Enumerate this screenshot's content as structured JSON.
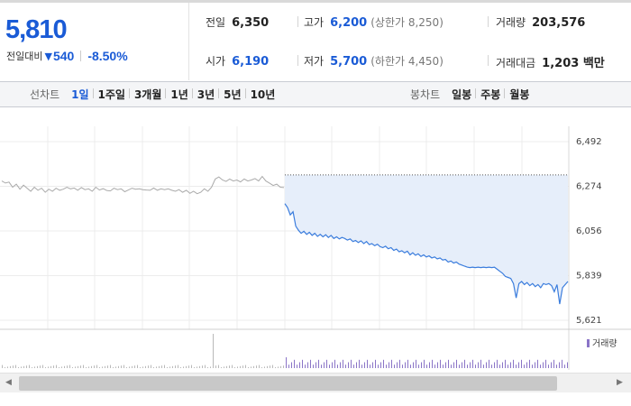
{
  "quote": {
    "current_price": "5,810",
    "change_label": "전일대비",
    "change_direction": "down",
    "change_amount": "540",
    "change_rate": "-8.50%",
    "accent_color": "#1a5bd6"
  },
  "stats": {
    "prev_close": {
      "label": "전일",
      "value": "6,350"
    },
    "high": {
      "label": "고가",
      "value": "6,200",
      "sub": "(상한가 8,250)"
    },
    "volume": {
      "label": "거래량",
      "value": "203,576"
    },
    "open": {
      "label": "시가",
      "value": "6,190"
    },
    "low": {
      "label": "저가",
      "value": "5,700",
      "sub": "(하한가 4,450)"
    },
    "trade_value": {
      "label": "거래대금",
      "value": "1,203 백만"
    }
  },
  "line_tabs": {
    "label": "선차트",
    "items": [
      "1일",
      "1주일",
      "3개월",
      "1년",
      "3년",
      "5년",
      "10년"
    ],
    "active": "1일"
  },
  "candle_tabs": {
    "label": "봉차트",
    "items": [
      "일봉",
      "주봉",
      "월봉"
    ]
  },
  "chart_data": {
    "type": "line",
    "y_ticks": [
      "6,492",
      "6,274",
      "6,056",
      "5,839",
      "5,621"
    ],
    "ylim": [
      5621,
      6492
    ],
    "previous_day_series": {
      "color": "#aaaaaa",
      "values": [
        6300,
        6290,
        6295,
        6270,
        6285,
        6260,
        6280,
        6265,
        6250,
        6270,
        6255,
        6265,
        6245,
        6260,
        6250,
        6265,
        6255,
        6260,
        6270,
        6262,
        6266,
        6255,
        6268,
        6258,
        6262,
        6250,
        6270,
        6256,
        6263,
        6254,
        6252,
        6265,
        6258,
        6262,
        6248,
        6256,
        6265,
        6260,
        6262,
        6258,
        6256,
        6255,
        6266,
        6255,
        6262,
        6258,
        6262,
        6255,
        6250,
        6258,
        6245,
        6255,
        6240,
        6250,
        6238,
        6245,
        6262,
        6250,
        6270,
        6310,
        6320,
        6305,
        6298,
        6310,
        6300,
        6305,
        6296,
        6310,
        6300,
        6305,
        6312,
        6300,
        6322,
        6300,
        6290,
        6278,
        6285,
        6270,
        6268
      ]
    },
    "today_series": {
      "color": "#3b7ddd",
      "fill_color": "#e6eefa",
      "values": [
        6190,
        6170,
        6135,
        6150,
        6080,
        6060,
        6045,
        6055,
        6040,
        6050,
        6035,
        6045,
        6030,
        6040,
        6028,
        6038,
        6025,
        6035,
        6020,
        6028,
        6018,
        6025,
        6020,
        6012,
        6018,
        6005,
        6010,
        6000,
        6008,
        5995,
        6005,
        5990,
        5995,
        5985,
        5992,
        5980,
        5975,
        5982,
        5970,
        5975,
        5962,
        5968,
        5955,
        5960,
        5950,
        5958,
        5940,
        5950,
        5938,
        5945,
        5932,
        5940,
        5930,
        5935,
        5925,
        5930,
        5920,
        5925,
        5915,
        5918,
        5905,
        5910,
        5900,
        5905,
        5895,
        5890,
        5885,
        5880,
        5878,
        5880,
        5878,
        5880,
        5878,
        5880,
        5878,
        5880,
        5878,
        5880,
        5870,
        5860,
        5850,
        5835,
        5830,
        5825,
        5800,
        5730,
        5800,
        5810,
        5795,
        5805,
        5790,
        5800,
        5785,
        5795,
        5780,
        5800,
        5795,
        5800,
        5790,
        5760,
        5795,
        5700,
        5780,
        5795,
        5810
      ]
    },
    "volume_label": "거래량"
  },
  "scrollbar": {
    "left_arrow": "◀",
    "right_arrow": "▶"
  }
}
